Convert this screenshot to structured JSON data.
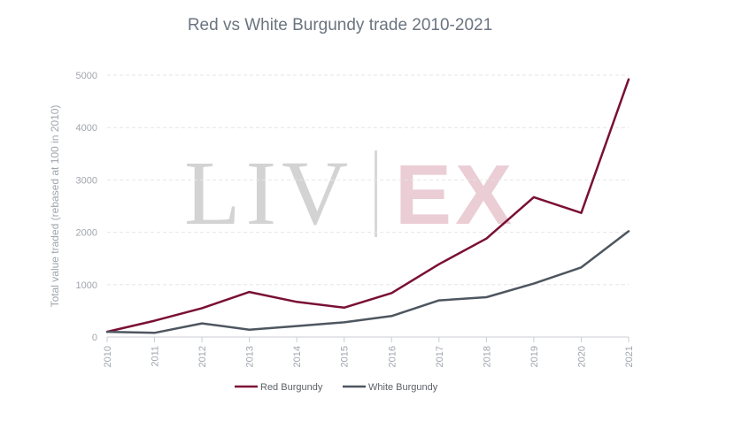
{
  "chart_data": {
    "type": "line",
    "title": "Red vs White Burgundy trade 2010-2021",
    "ylabel": "Total value traded (rebased at 100 in 2010)",
    "xlabel": "",
    "ylim": [
      0,
      5000
    ],
    "yticks": [
      0,
      1000,
      2000,
      3000,
      4000,
      5000
    ],
    "categories": [
      "2010",
      "2011",
      "2012",
      "2013",
      "2014",
      "2015",
      "2016",
      "2017",
      "2018",
      "2019",
      "2020",
      "2021"
    ],
    "grid": true,
    "legend_position": "bottom",
    "series": [
      {
        "name": "Red Burgundy",
        "color": "#7a0f35",
        "values": [
          100,
          310,
          550,
          860,
          670,
          560,
          840,
          1390,
          1880,
          2670,
          2370,
          4920
        ]
      },
      {
        "name": "White Burgundy",
        "color": "#4e5660",
        "values": [
          100,
          80,
          260,
          140,
          210,
          280,
          400,
          700,
          760,
          1020,
          1330,
          2020
        ]
      }
    ]
  },
  "watermark": {
    "left_text": "LIV",
    "right_text": "EX",
    "left_color": "#d3d3d3",
    "right_color": "#ebcdd5"
  }
}
